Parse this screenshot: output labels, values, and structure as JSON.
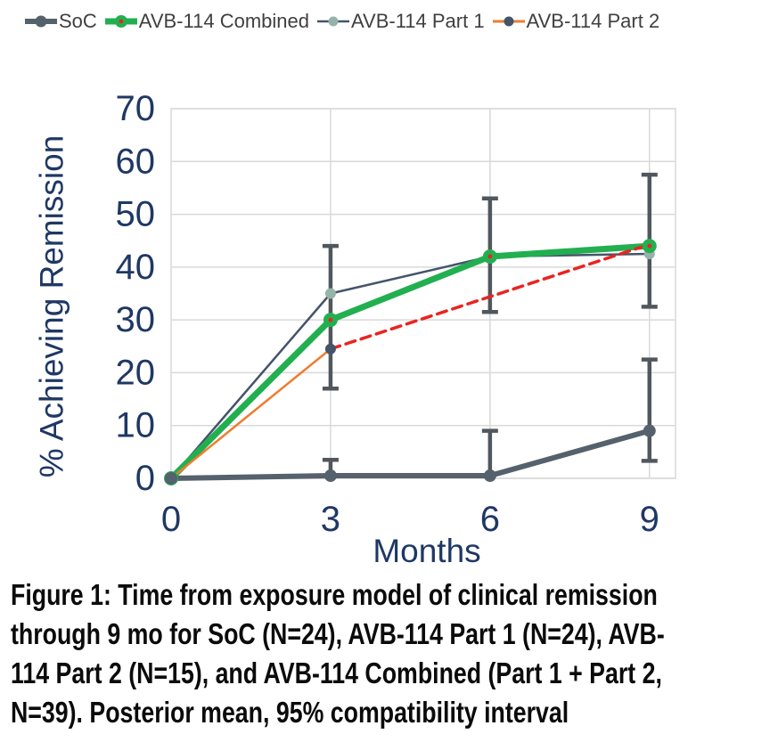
{
  "legend": {
    "items": [
      {
        "label": "SoC",
        "line_color": "#55616C",
        "line_width": 6,
        "dot_color": "#55616C",
        "dot_radius": 6.5
      },
      {
        "label": "AVB-114 Combined",
        "line_color": "#22AF50",
        "line_width": 7,
        "dot_color": "#22AF50",
        "dot_radius": 7,
        "center_dot_color": "#EA2420"
      },
      {
        "label": "AVB-114 Part 1",
        "line_color": "#44546A",
        "line_width": 2.5,
        "dot_color": "#95B3A8",
        "dot_radius": 5.5
      },
      {
        "label": "AVB-114 Part 2",
        "line_color": "#EE7D2F",
        "line_width": 3,
        "dot_color": "#44546A",
        "dot_radius": 5.5
      }
    ]
  },
  "chart_data": {
    "type": "line",
    "title": "",
    "xlabel": "Months",
    "ylabel": "% Achieving Remission",
    "x_ticks": [
      0,
      3,
      6,
      9
    ],
    "y_ticks": [
      0,
      10,
      20,
      30,
      40,
      50,
      60,
      70
    ],
    "xlim": [
      0,
      9.49
    ],
    "ylim": [
      0,
      70
    ],
    "grid": true,
    "legend_position": "top-left",
    "axis_text_color": "#1F3864",
    "gridline_color": "#D9D9D9",
    "error_bar_color": "#50575D",
    "series": [
      {
        "name": "SoC",
        "points": [
          [
            0,
            0
          ],
          [
            3,
            0.5
          ],
          [
            6,
            0.5
          ],
          [
            9,
            9
          ]
        ],
        "color": "#55616C",
        "line_width": 6,
        "marker": {
          "shape": "circle",
          "radius": 7,
          "fill": "#55616C"
        },
        "error_bars": [
          {
            "x": 3,
            "low": 0,
            "high": 3.5
          },
          {
            "x": 6,
            "low": 0,
            "high": 9
          },
          {
            "x": 9,
            "low": 3.3,
            "high": 22.5
          }
        ]
      },
      {
        "name": "AVB-114 Combined",
        "points": [
          [
            0,
            0
          ],
          [
            3,
            30
          ],
          [
            6,
            42
          ],
          [
            9,
            44
          ]
        ],
        "color": "#22AF50",
        "line_width": 7,
        "marker": {
          "shape": "circle",
          "radius": 8,
          "fill": "#22AF50",
          "center_dot": "#EA2420"
        },
        "error_bars": [
          {
            "x": 3,
            "low": 17,
            "high": 44
          },
          {
            "x": 6,
            "low": 31.5,
            "high": 53
          },
          {
            "x": 9,
            "low": 32.5,
            "high": 57.5
          }
        ]
      },
      {
        "name": "AVB-114 Part 1",
        "points": [
          [
            0,
            0
          ],
          [
            3,
            35
          ],
          [
            6,
            42
          ],
          [
            9,
            42.5
          ]
        ],
        "color": "#44546A",
        "line_width": 2.5,
        "marker": {
          "shape": "circle",
          "radius": 6,
          "fill": "#95B3A8"
        }
      },
      {
        "name": "AVB-114 Part 2",
        "points": [
          [
            0,
            0
          ],
          [
            3,
            24.5
          ],
          [
            9,
            44.3
          ]
        ],
        "color": "#EE7D2F",
        "line_width": 2.5,
        "marker": {
          "shape": "circle",
          "radius": 6,
          "fill": "#44546A"
        },
        "segments": [
          {
            "from": [
              0,
              0
            ],
            "to": [
              3,
              24.5
            ],
            "style": "solid",
            "color": "#EE7D2F",
            "width": 2.5
          },
          {
            "from": [
              3,
              24.5
            ],
            "to": [
              9,
              44.3
            ],
            "style": "dashed",
            "color": "#EA2420",
            "width": 3.5
          }
        ]
      }
    ]
  },
  "caption": {
    "full": "Figure 1: Time from exposure model of clinical remission through 9 mo for SoC (N=24), AVB-114 Part 1 (N=24), AVB-114 Part 2 (N=15), and AVB-114 Combined (Part 1 + Part 2, N=39). Posterior mean, 95% compatibility interval",
    "lines": [
      "Figure 1: Time from exposure model of clinical remission",
      "through 9 mo for SoC (N=24), AVB-114 Part 1 (N=24), AVB-",
      "114 Part 2 (N=15), and AVB-114 Combined (Part 1 + Part 2,",
      "N=39). Posterior mean, 95% compatibility interval"
    ]
  }
}
